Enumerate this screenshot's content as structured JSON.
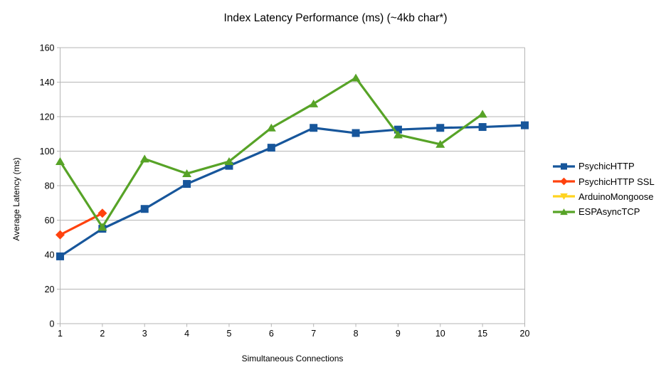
{
  "chart_data": {
    "type": "line",
    "title": "Index Latency Performance (ms) (~4kb char*)",
    "xlabel": "Simultaneous Connections",
    "ylabel": "Average Latency (ms)",
    "categories": [
      "1",
      "2",
      "3",
      "4",
      "5",
      "6",
      "7",
      "8",
      "9",
      "10",
      "15",
      "20"
    ],
    "ylim": [
      0,
      160
    ],
    "ytick_step": 20,
    "grid": "horizontal",
    "legend_position": "right",
    "colors": {
      "background": "#ffffff",
      "grid": "#b5b5b5",
      "text": "#000000"
    },
    "series": [
      {
        "name": "PsychicHTTP",
        "color": "#17569B",
        "marker": "square",
        "values": [
          39,
          55,
          66.5,
          81,
          91.5,
          102,
          113.5,
          110.5,
          112.5,
          113.5,
          114,
          115
        ]
      },
      {
        "name": "PsychicHTTP SSL",
        "color": "#FF420E",
        "marker": "diamond",
        "values": [
          51.5,
          64,
          null,
          null,
          null,
          null,
          null,
          null,
          null,
          null,
          null,
          null
        ]
      },
      {
        "name": "ArduinoMongoose",
        "color": "#FFD320",
        "marker": "triangle-down",
        "values": [
          null,
          null,
          null,
          null,
          null,
          null,
          null,
          null,
          null,
          null,
          null,
          null
        ]
      },
      {
        "name": "ESPAsyncTCP",
        "color": "#57A327",
        "marker": "triangle-up",
        "values": [
          94,
          56,
          95.5,
          87,
          94,
          113.5,
          127.5,
          142.5,
          109.5,
          104,
          121.5,
          null
        ]
      }
    ]
  }
}
